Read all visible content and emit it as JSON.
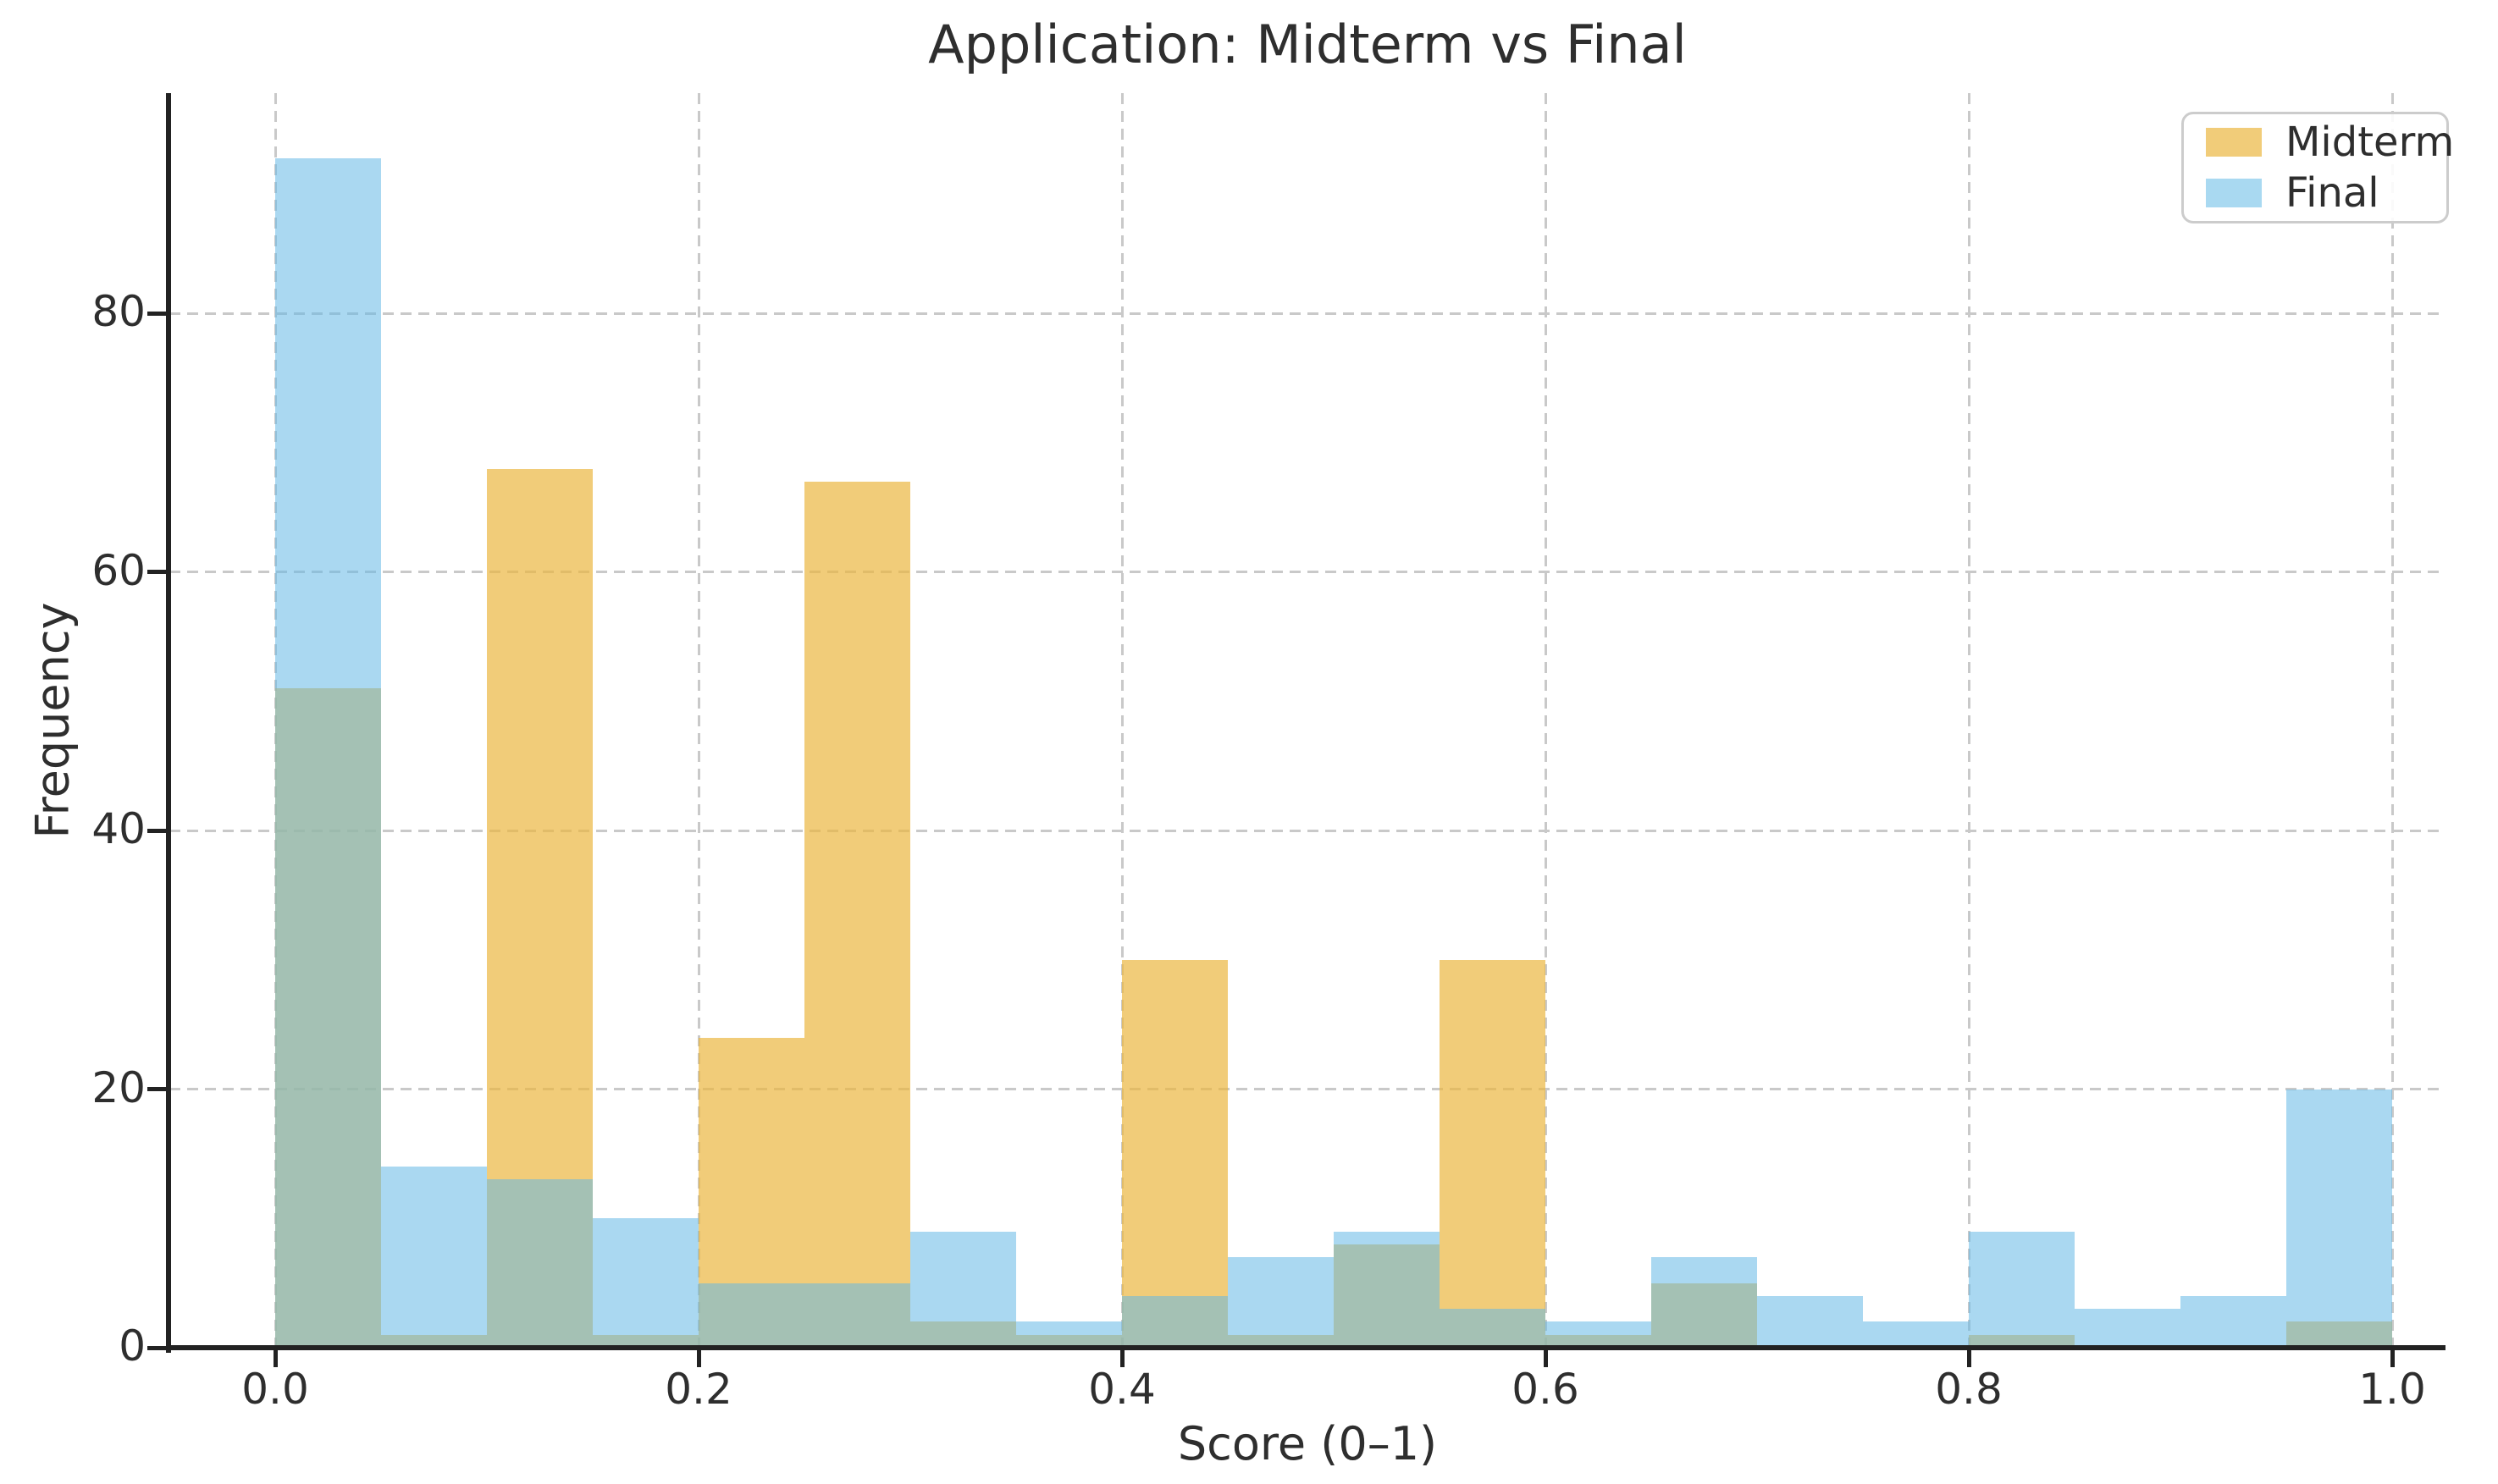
{
  "chart_data": {
    "type": "bar",
    "subtype": "overlaid-histogram",
    "title": "Application: Midterm vs Final",
    "xlabel": "Score (0–1)",
    "ylabel": "Frequency",
    "bin_start": 0.0,
    "bin_width": 0.05,
    "bin_edges": [
      0.0,
      0.05,
      0.1,
      0.15,
      0.2,
      0.25,
      0.3,
      0.35,
      0.4,
      0.45,
      0.5,
      0.55,
      0.6,
      0.65,
      0.7,
      0.75,
      0.8,
      0.85,
      0.9,
      0.95,
      1.0
    ],
    "series": [
      {
        "name": "Midterm",
        "fill": "rgba(235,182,64,0.70)",
        "legend_color": "#f1cc79",
        "counts": [
          51,
          1,
          68,
          1,
          24,
          67,
          2,
          1,
          30,
          1,
          8,
          30,
          1,
          5,
          0,
          0,
          1,
          0,
          0,
          2
        ]
      },
      {
        "name": "Final",
        "fill": "rgba(100,184,230,0.55)",
        "legend_color": "#a9d9f1",
        "counts": [
          92,
          14,
          13,
          10,
          5,
          5,
          9,
          2,
          4,
          7,
          9,
          3,
          2,
          7,
          4,
          2,
          9,
          3,
          4,
          20
        ]
      }
    ],
    "x_tick_labels": [
      "0.0",
      "0.2",
      "0.4",
      "0.6",
      "0.8",
      "1.0"
    ],
    "x_tick_values": [
      0.0,
      0.2,
      0.4,
      0.6,
      0.8,
      1.0
    ],
    "y_tick_labels": [
      "0",
      "20",
      "40",
      "60",
      "80"
    ],
    "y_tick_values": [
      0,
      20,
      40,
      60,
      80
    ],
    "y_gridline_values": [
      20,
      40,
      60,
      80
    ],
    "xlim": [
      -0.05,
      1.025
    ],
    "ylim": [
      0,
      97
    ],
    "grid": true,
    "legend_position": "upper right",
    "overlap_color": "#a4c0b2"
  },
  "colors": {
    "background": "#ffffff",
    "text": "#2e2e2e",
    "gridline": "#c9c9c9",
    "spine": "#222222",
    "legend_border": "#cccccc"
  }
}
